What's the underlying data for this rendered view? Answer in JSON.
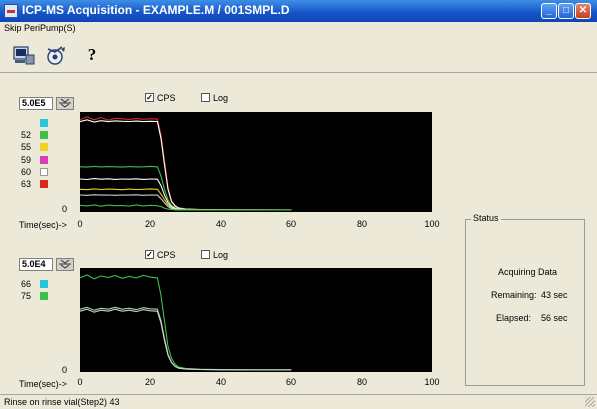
{
  "window": {
    "title": "ICP-MS Acquisition - EXAMPLE.M / 001SMPL.D",
    "controls": {
      "minimize": "_",
      "maximize": "□",
      "close": "✕"
    }
  },
  "menu": {
    "items": [
      "Skip PeriPump(S)"
    ]
  },
  "toolbar": {
    "help_label": "?"
  },
  "panel_top": {
    "scale_value": "5.0E5",
    "cps_label": "CPS",
    "cps_checked": true,
    "log_label": "Log",
    "log_checked": false,
    "legend": [
      {
        "label": "",
        "color": "#2ec4d8"
      },
      {
        "label": "52",
        "color": "#3fbf4a"
      },
      {
        "label": "55",
        "color": "#f0d21e"
      },
      {
        "label": "59",
        "color": "#d63fb6"
      },
      {
        "label": "60",
        "color": "#ffffff"
      },
      {
        "label": "63",
        "color": "#d62a22"
      }
    ],
    "y_ticks": [
      "0"
    ],
    "x_label": "Time(sec)->",
    "x_ticks": [
      "0",
      "20",
      "40",
      "60",
      "80",
      "100"
    ]
  },
  "panel_bottom": {
    "scale_value": "5.0E4",
    "cps_label": "CPS",
    "cps_checked": true,
    "log_label": "Log",
    "log_checked": false,
    "legend": [
      {
        "label": "66",
        "color": "#2ec4d8"
      },
      {
        "label": "75",
        "color": "#3fbf4a"
      }
    ],
    "y_ticks": [
      "0"
    ],
    "x_label": "Time(sec)->",
    "x_ticks": [
      "0",
      "20",
      "40",
      "60",
      "80",
      "100"
    ]
  },
  "status": {
    "group_title": "Status",
    "state": "Acquiring Data",
    "remaining_label": "Remaining:",
    "remaining_value": "43 sec",
    "elapsed_label": "Elapsed:",
    "elapsed_value": "56 sec"
  },
  "status_bar": {
    "text": "Rinse on rinse vial(Step2) 43"
  },
  "chart_data": [
    {
      "type": "line",
      "xlabel": "Time(sec)->",
      "ylabel": "CPS",
      "xlim": [
        0,
        100
      ],
      "ylim": [
        0,
        500000
      ],
      "series": [
        {
          "name": "63",
          "color": "#d62a22",
          "x": [
            0,
            2,
            4,
            6,
            8,
            10,
            12,
            14,
            16,
            18,
            20,
            22,
            23,
            24,
            25,
            26,
            27,
            28,
            30,
            34,
            40,
            50,
            60
          ],
          "y": [
            480000,
            495000,
            480000,
            492000,
            478000,
            488000,
            485000,
            482000,
            486000,
            483000,
            485000,
            484000,
            400000,
            260000,
            120000,
            50000,
            25000,
            12000,
            6000,
            3000,
            1500,
            800,
            500
          ]
        },
        {
          "name": "60",
          "color": "#ffffff",
          "x": [
            0,
            2,
            4,
            6,
            8,
            10,
            12,
            14,
            16,
            18,
            20,
            22,
            23,
            24,
            25,
            26,
            27,
            28,
            30,
            34,
            40,
            50,
            60
          ],
          "y": [
            470000,
            480000,
            468000,
            475000,
            470000,
            474000,
            472000,
            471000,
            473000,
            470000,
            472000,
            471000,
            380000,
            240000,
            110000,
            45000,
            22000,
            10000,
            5000,
            2500,
            1200,
            600,
            400
          ]
        },
        {
          "name": "52",
          "color": "#3fbf4a",
          "x": [
            0,
            2,
            4,
            6,
            8,
            10,
            12,
            14,
            16,
            18,
            20,
            22,
            23,
            24,
            25,
            26,
            27,
            28,
            30,
            34,
            40,
            50,
            60
          ],
          "y": [
            230000,
            228000,
            232000,
            229000,
            231000,
            230000,
            228000,
            231000,
            229000,
            230000,
            232000,
            230000,
            180000,
            110000,
            55000,
            25000,
            12000,
            6000,
            3000,
            1500,
            800,
            400,
            300
          ]
        },
        {
          "name": "",
          "color": "#ffffff",
          "x": [
            0,
            2,
            4,
            6,
            8,
            10,
            12,
            14,
            16,
            18,
            20,
            22,
            23,
            24,
            25,
            26,
            27,
            28,
            30,
            34,
            40,
            50,
            60
          ],
          "y": [
            165000,
            162000,
            167000,
            164000,
            166000,
            163000,
            165000,
            164000,
            166000,
            163000,
            165000,
            164000,
            130000,
            80000,
            40000,
            18000,
            9000,
            4000,
            2000,
            1000,
            500,
            300,
            200
          ]
        },
        {
          "name": "55",
          "color": "#f0d21e",
          "x": [
            0,
            2,
            4,
            6,
            8,
            10,
            12,
            14,
            16,
            18,
            20,
            22,
            23,
            24,
            25,
            26,
            27,
            28,
            30,
            34,
            40,
            50,
            60
          ],
          "y": [
            110000,
            108000,
            112000,
            109000,
            111000,
            110000,
            108000,
            111000,
            109000,
            110000,
            112000,
            110000,
            85000,
            55000,
            28000,
            12000,
            6000,
            3000,
            1500,
            800,
            400,
            200,
            100
          ]
        },
        {
          "name": "",
          "color": "#d0d0d0",
          "x": [
            0,
            2,
            4,
            6,
            8,
            10,
            12,
            14,
            16,
            18,
            20,
            22,
            23,
            24,
            25,
            26,
            27,
            28,
            30,
            34,
            40,
            50,
            60
          ],
          "y": [
            80000,
            78000,
            81000,
            79000,
            80000,
            78000,
            80000,
            79000,
            81000,
            78000,
            80000,
            79000,
            60000,
            38000,
            18000,
            8000,
            4000,
            2000,
            1000,
            500,
            300,
            150,
            100
          ]
        },
        {
          "name": "",
          "color": "#3fbf4a",
          "x": [
            0,
            2,
            4,
            6,
            8,
            10,
            12,
            14,
            16,
            18,
            20,
            22,
            23,
            24,
            25,
            26,
            27,
            28,
            30,
            34,
            40,
            50,
            60
          ],
          "y": [
            25000,
            22000,
            27000,
            20000,
            26000,
            23000,
            24000,
            21000,
            27000,
            22000,
            25000,
            23000,
            18000,
            10000,
            5000,
            2500,
            1200,
            600,
            300,
            150,
            80,
            50,
            30
          ]
        }
      ]
    },
    {
      "type": "line",
      "xlabel": "Time(sec)->",
      "ylabel": "CPS",
      "xlim": [
        0,
        100
      ],
      "ylim": [
        0,
        50000
      ],
      "series": [
        {
          "name": "75",
          "color": "#3fbf4a",
          "x": [
            0,
            2,
            4,
            6,
            8,
            10,
            12,
            14,
            16,
            18,
            20,
            22,
            23,
            24,
            25,
            26,
            27,
            28,
            30,
            34,
            40,
            50,
            60
          ],
          "y": [
            47000,
            48500,
            46500,
            48000,
            47200,
            48200,
            46800,
            47800,
            47000,
            48300,
            47400,
            47000,
            38000,
            25000,
            12000,
            6000,
            3000,
            1500,
            800,
            400,
            200,
            100,
            80
          ]
        },
        {
          "name": "66",
          "color": "#a8d8a8",
          "x": [
            0,
            2,
            4,
            6,
            8,
            10,
            12,
            14,
            16,
            18,
            20,
            22,
            23,
            24,
            25,
            26,
            27,
            28,
            30,
            34,
            40,
            50,
            60
          ],
          "y": [
            31000,
            32000,
            30500,
            31500,
            31000,
            32000,
            31000,
            31500,
            30800,
            31800,
            31200,
            31000,
            25000,
            16000,
            8000,
            4000,
            2000,
            1000,
            500,
            250,
            120,
            60,
            40
          ]
        },
        {
          "name": "",
          "color": "#d0d0d0",
          "x": [
            0,
            2,
            4,
            6,
            8,
            10,
            12,
            14,
            16,
            18,
            20,
            22,
            23,
            24,
            25,
            26,
            27,
            28,
            30,
            34,
            40,
            50,
            60
          ],
          "y": [
            30000,
            31000,
            29500,
            30500,
            30000,
            31000,
            30000,
            30500,
            29800,
            30800,
            30200,
            30000,
            24000,
            15000,
            7500,
            3800,
            1900,
            900,
            450,
            230,
            110,
            55,
            35
          ]
        }
      ]
    }
  ]
}
